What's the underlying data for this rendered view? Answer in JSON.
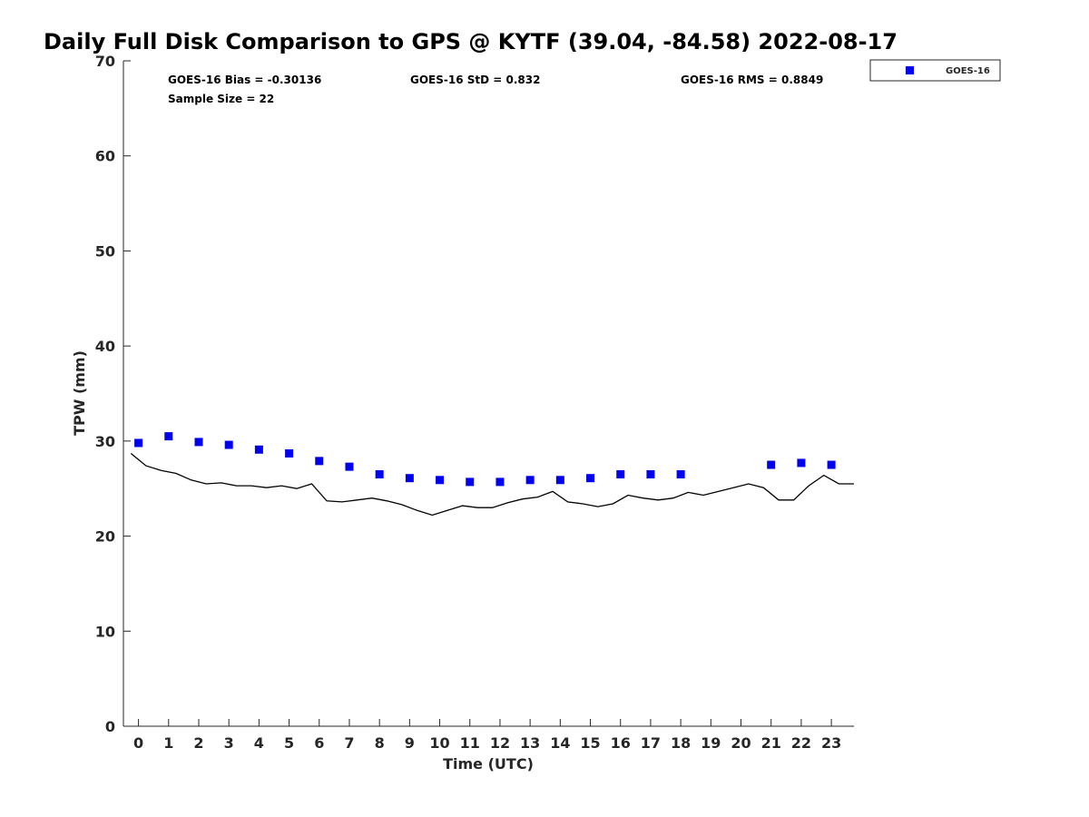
{
  "chart_data": {
    "type": "scatter",
    "title": "Daily Full Disk Comparison to GPS @ KYTF (39.04, -84.58) 2022-08-17",
    "xlabel": "Time (UTC)",
    "ylabel": "TPW (mm)",
    "xlim": [
      -0.5,
      23.75
    ],
    "ylim": [
      0,
      70
    ],
    "x_ticks": [
      0,
      1,
      2,
      3,
      4,
      5,
      6,
      7,
      8,
      9,
      10,
      11,
      12,
      13,
      14,
      15,
      16,
      17,
      18,
      19,
      20,
      21,
      22,
      23
    ],
    "y_ticks": [
      0,
      10,
      20,
      30,
      40,
      50,
      60,
      70
    ],
    "grid": false,
    "legend_position": "top-right",
    "stats": {
      "bias": "GOES-16 Bias = -0.30136",
      "std": "GOES-16 StD = 0.832",
      "rms": "GOES-16 RMS = 0.8849",
      "sample": "Sample Size = 22"
    },
    "series": [
      {
        "name": "GOES-16",
        "marker": "square",
        "color": "#0000ee",
        "x": [
          0,
          1,
          2,
          3,
          4,
          5,
          6,
          7,
          8,
          9,
          10,
          11,
          12,
          13,
          14,
          15,
          16,
          17,
          18,
          21,
          22,
          23
        ],
        "y": [
          29.8,
          30.5,
          29.9,
          29.6,
          29.1,
          28.7,
          27.9,
          27.3,
          26.5,
          26.1,
          25.9,
          25.7,
          25.7,
          25.9,
          25.9,
          26.1,
          26.5,
          26.5,
          26.5,
          27.5,
          27.7,
          27.5
        ]
      },
      {
        "line": true,
        "color": "#000000",
        "x": [
          -0.25,
          0.25,
          0.75,
          1.25,
          1.75,
          2.25,
          2.75,
          3.25,
          3.75,
          4.25,
          4.75,
          5.25,
          5.75,
          6.25,
          6.75,
          7.25,
          7.75,
          8.25,
          8.75,
          9.25,
          9.75,
          10.25,
          10.75,
          11.25,
          11.75,
          12.25,
          12.75,
          13.25,
          13.75,
          14.25,
          14.75,
          15.25,
          15.75,
          16.25,
          16.75,
          17.25,
          17.75,
          18.25,
          18.75,
          19.25,
          19.75,
          20.25,
          20.75,
          21.25,
          21.75,
          22.25,
          22.75,
          23.25,
          23.75
        ],
        "y": [
          28.7,
          27.4,
          26.9,
          26.6,
          25.9,
          25.5,
          25.6,
          25.3,
          25.3,
          25.1,
          25.3,
          25.0,
          25.5,
          23.7,
          23.6,
          23.8,
          24.0,
          23.7,
          23.3,
          22.7,
          22.2,
          22.7,
          23.2,
          23.0,
          23.0,
          23.5,
          23.9,
          24.1,
          24.7,
          23.6,
          23.4,
          23.1,
          23.4,
          24.3,
          24.0,
          23.8,
          24.0,
          24.6,
          24.3,
          24.7,
          25.1,
          25.5,
          25.1,
          23.8,
          23.8,
          25.3,
          26.4,
          25.5,
          25.5
        ]
      }
    ]
  }
}
